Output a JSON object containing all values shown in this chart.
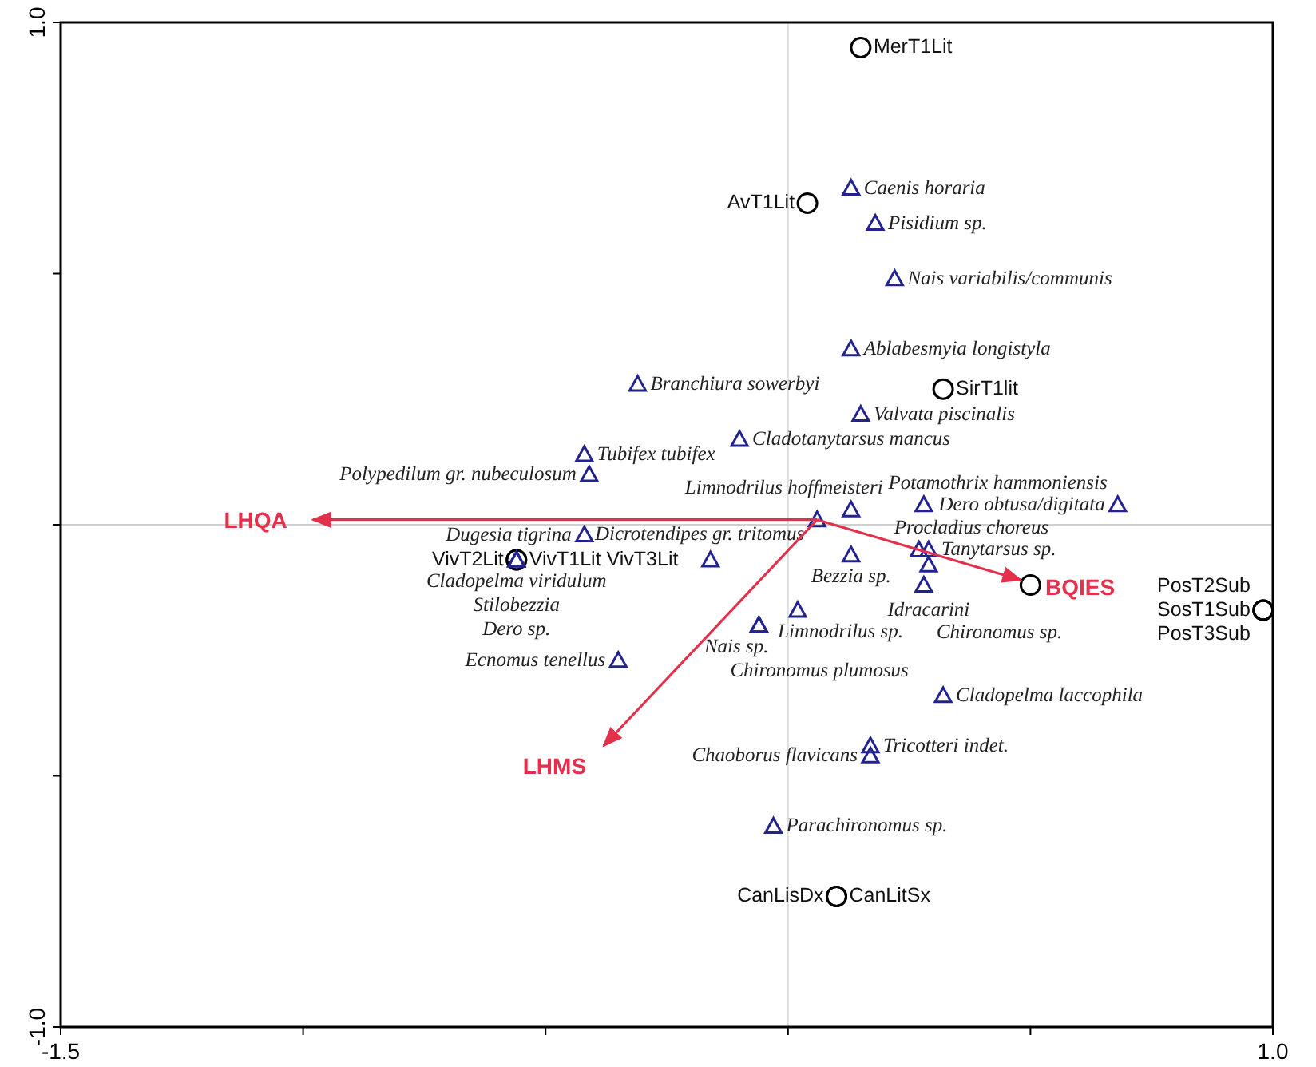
{
  "chart_data": {
    "type": "scatter",
    "xlim": [
      -1.5,
      1.0
    ],
    "ylim": [
      -1.0,
      1.0
    ],
    "xticks": [
      {
        "value": -1.5,
        "label": "-1.5"
      },
      {
        "value": -1.0,
        "label": null
      },
      {
        "value": -0.5,
        "label": null
      },
      {
        "value": 0,
        "label": null
      },
      {
        "value": 0.5,
        "label": null
      },
      {
        "value": 1.0,
        "label": "1.0"
      }
    ],
    "yticks": [
      {
        "value": -1.0,
        "label": "-1.0"
      },
      {
        "value": -0.5,
        "label": null
      },
      {
        "value": 0,
        "label": null
      },
      {
        "value": 0.5,
        "label": null
      },
      {
        "value": 1.0,
        "label": "1.0"
      }
    ],
    "grid": false,
    "legend": false,
    "ref_lines": [
      {
        "axis": "x",
        "value": 0,
        "color": "#dedede"
      },
      {
        "axis": "y",
        "value": 0,
        "color": "#d0d0d0"
      }
    ],
    "series": [
      {
        "marker": "circle",
        "color": "#000000",
        "x": [
          0.15,
          0.04,
          0.32,
          0.5,
          0.98,
          0.98,
          0.98,
          -0.56,
          -0.56,
          0.1,
          0.1
        ],
        "values": [
          0.95,
          0.64,
          0.27,
          -0.12,
          -0.17,
          -0.17,
          -0.17,
          -0.07,
          -0.07,
          -0.74,
          -0.74
        ],
        "value_labels": [
          "MerT1Lit",
          "AvT1Lit",
          "SirT1lit",
          null,
          "SosT1Sub",
          "PosT2Sub",
          "PosT3Sub",
          "VivT1Lit VivT3Lit",
          "VivT2Lit",
          "CanLitSx",
          "CanLisDx"
        ]
      },
      {
        "marker": "triangle",
        "color": "#23238f",
        "x": [
          0.13,
          0.18,
          0.22,
          0.13,
          -0.31,
          0.15,
          -0.1,
          -0.42,
          -0.41,
          0.13,
          0.06,
          0.28,
          0.68,
          0.27,
          0.29,
          0.29,
          0.13,
          0.28,
          -0.42,
          -0.16,
          -0.56,
          -0.56,
          -0.56,
          0.02,
          -0.06,
          -0.06,
          -0.35,
          0.32,
          0.17,
          0.17,
          -0.03
        ],
        "values": [
          0.67,
          0.6,
          0.49,
          0.35,
          0.28,
          0.22,
          0.17,
          0.14,
          0.1,
          0.03,
          0.01,
          0.04,
          0.04,
          -0.05,
          -0.05,
          -0.08,
          -0.06,
          -0.12,
          -0.02,
          -0.07,
          -0.07,
          -0.07,
          -0.07,
          -0.17,
          -0.2,
          -0.2,
          -0.27,
          -0.34,
          -0.44,
          -0.46,
          -0.6
        ],
        "value_labels": [
          "Caenis horaria",
          "Pisidium sp.",
          "Nais variabilis/communis",
          "Ablabesmyia longistyla",
          "Branchiura sowerbyi",
          "Valvata piscinalis",
          "Cladotanytarsus mancus",
          "Tubifex tubifex",
          "Polypedilum gr. nubeculosum",
          "Limnodrilus hoffmeisteri",
          "Dicrotendipes gr. tritomus",
          "Potamothrix hammoniensis",
          "Dero obtusa/digitata",
          "Procladius choreus",
          "Tanytarsus sp.",
          "Idracarini",
          "Bezzia sp.",
          "Chironomus sp.",
          "Dugesia tigrina",
          null,
          "Cladopelma viridulum",
          "Stilobezzia",
          "Dero sp.",
          "Limnodrilus sp.",
          "Chironomus plumosus",
          "Nais sp.",
          "Ecnomus tenellus",
          "Cladopelma laccophila",
          "Tricotteri indet.",
          "Chaoborus flavicans",
          "Parachironomus sp."
        ]
      },
      {
        "type": "line",
        "name": "LHQA",
        "color": "#e3304b",
        "marker": "none",
        "x": [
          0.06,
          -0.98
        ],
        "values": [
          0.01,
          0.01
        ]
      },
      {
        "type": "line",
        "name": "LHMS",
        "color": "#e3304b",
        "marker": "none",
        "x": [
          0.06,
          -0.38
        ],
        "values": [
          0.01,
          -0.44
        ]
      },
      {
        "type": "line",
        "name": "BQIES",
        "color": "#e3304b",
        "marker": "none",
        "x": [
          0.06,
          0.48
        ],
        "values": [
          0.01,
          -0.11
        ]
      }
    ]
  }
}
